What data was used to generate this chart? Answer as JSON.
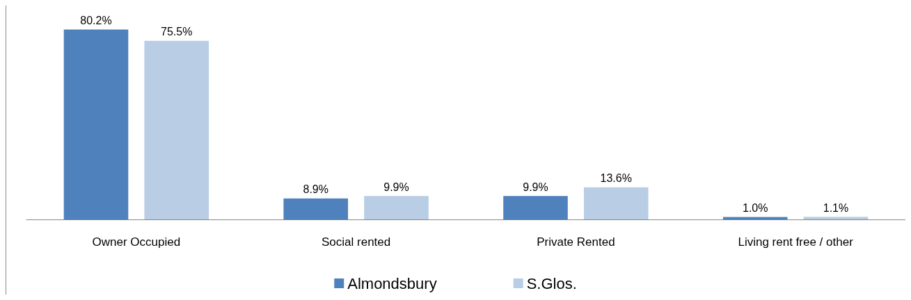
{
  "chart_data": {
    "type": "bar",
    "categories": [
      "Owner Occupied",
      "Social rented",
      "Private Rented",
      "Living rent free / other"
    ],
    "series": [
      {
        "name": "Almondsbury",
        "color": "#4f81bd",
        "values": [
          80.2,
          8.9,
          9.9,
          1.0
        ],
        "value_labels": [
          "80.2%",
          "8.9%",
          "9.9%",
          "1.0%"
        ]
      },
      {
        "name": "S.Glos.",
        "color": "#b9cde5",
        "values": [
          75.5,
          9.9,
          13.6,
          1.1
        ],
        "value_labels": [
          "75.5%",
          "9.9%",
          "13.6%",
          "1.1%"
        ]
      }
    ],
    "legend": "bottom",
    "grid": false
  }
}
